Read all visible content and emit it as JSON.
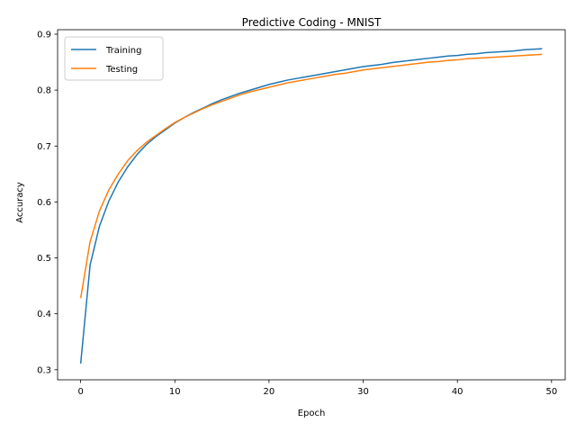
{
  "chart_data": {
    "type": "line",
    "title": "Predictive Coding - MNIST",
    "xlabel": "Epoch",
    "ylabel": "Accuracy",
    "xlim": [
      -2.45,
      51.45
    ],
    "ylim": [
      0.282,
      0.908
    ],
    "xticks": [
      0,
      10,
      20,
      30,
      40,
      50
    ],
    "yticks": [
      0.3,
      0.4,
      0.5,
      0.6,
      0.7,
      0.8,
      0.9
    ],
    "grid": false,
    "legend_position": "top-left",
    "x": [
      0,
      1,
      2,
      3,
      4,
      5,
      6,
      7,
      8,
      9,
      10,
      11,
      12,
      13,
      14,
      15,
      16,
      17,
      18,
      19,
      20,
      21,
      22,
      23,
      24,
      25,
      26,
      27,
      28,
      29,
      30,
      31,
      32,
      33,
      34,
      35,
      36,
      37,
      38,
      39,
      40,
      41,
      42,
      43,
      44,
      45,
      46,
      47,
      48,
      49
    ],
    "series": [
      {
        "name": "Training",
        "color": "#1f77b4",
        "values": [
          0.311,
          0.487,
          0.557,
          0.602,
          0.636,
          0.663,
          0.685,
          0.703,
          0.717,
          0.729,
          0.741,
          0.751,
          0.76,
          0.768,
          0.776,
          0.783,
          0.789,
          0.795,
          0.8,
          0.805,
          0.81,
          0.814,
          0.818,
          0.821,
          0.824,
          0.827,
          0.83,
          0.833,
          0.836,
          0.839,
          0.842,
          0.844,
          0.846,
          0.849,
          0.851,
          0.853,
          0.855,
          0.857,
          0.859,
          0.861,
          0.862,
          0.864,
          0.865,
          0.867,
          0.868,
          0.869,
          0.87,
          0.872,
          0.873,
          0.874
        ]
      },
      {
        "name": "Testing",
        "color": "#ff7f0e",
        "values": [
          0.428,
          0.529,
          0.584,
          0.622,
          0.65,
          0.674,
          0.692,
          0.707,
          0.719,
          0.731,
          0.742,
          0.751,
          0.759,
          0.767,
          0.774,
          0.78,
          0.786,
          0.792,
          0.797,
          0.801,
          0.805,
          0.809,
          0.813,
          0.816,
          0.819,
          0.822,
          0.825,
          0.828,
          0.83,
          0.833,
          0.836,
          0.838,
          0.84,
          0.842,
          0.844,
          0.846,
          0.848,
          0.85,
          0.851,
          0.853,
          0.854,
          0.856,
          0.857,
          0.858,
          0.859,
          0.86,
          0.861,
          0.862,
          0.863,
          0.864
        ]
      }
    ]
  }
}
